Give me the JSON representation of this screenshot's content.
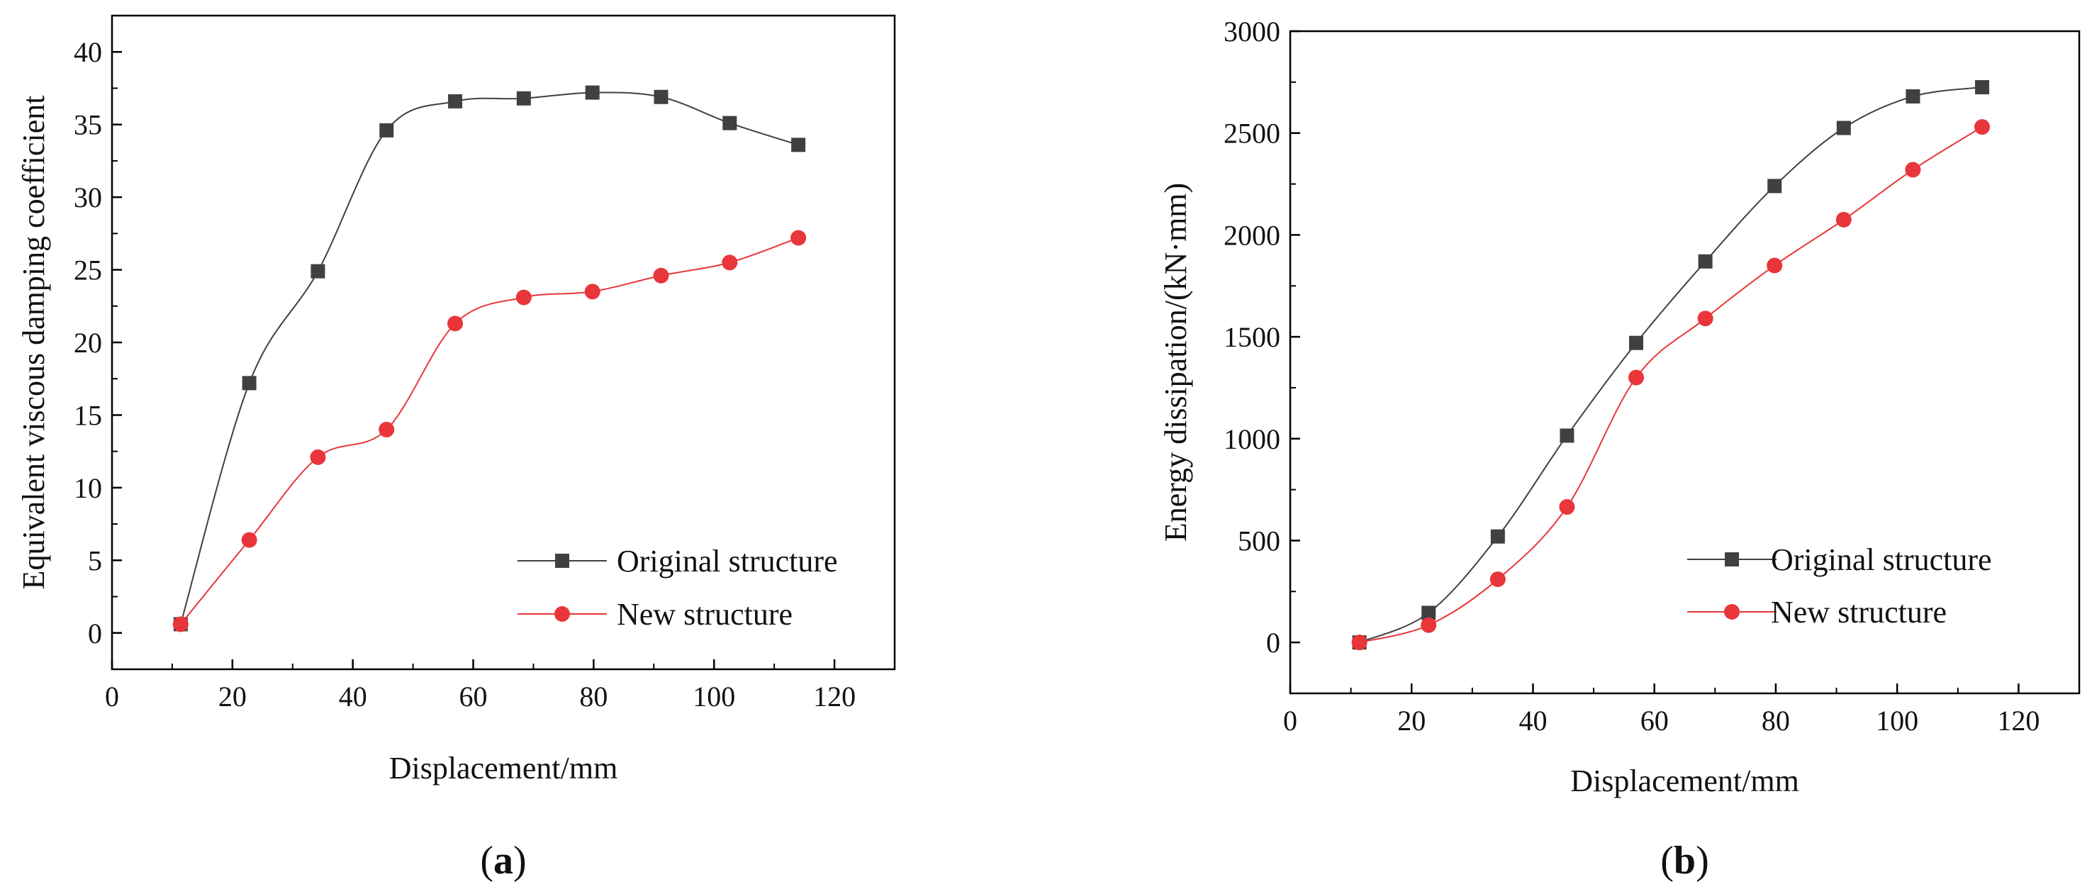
{
  "chart_data": [
    {
      "id": "a",
      "type": "line",
      "caption_letter": "a",
      "title": "",
      "xlabel": "Displacement/mm",
      "ylabel": "Equivalent viscous damping coefficient",
      "xlim": [
        0,
        130
      ],
      "ylim": [
        -2.5,
        42.5
      ],
      "xticks": [
        0,
        20,
        40,
        60,
        80,
        100,
        120
      ],
      "yticks": [
        0,
        5,
        10,
        15,
        20,
        25,
        30,
        35,
        40
      ],
      "grid": false,
      "legend_position": "lower-right",
      "series": [
        {
          "name": "Original  structure",
          "marker": "square",
          "color": "#404040",
          "x": [
            11.4,
            22.8,
            34.2,
            45.6,
            57.0,
            68.4,
            79.8,
            91.2,
            102.6,
            114.0
          ],
          "y": [
            0.6,
            17.2,
            24.9,
            34.6,
            36.6,
            36.8,
            37.2,
            36.9,
            35.1,
            33.6
          ]
        },
        {
          "name": "New structure",
          "marker": "circle",
          "color": "#e8363b",
          "x": [
            11.4,
            22.8,
            34.2,
            45.6,
            57.0,
            68.4,
            79.8,
            91.2,
            102.6,
            114.0
          ],
          "y": [
            0.6,
            6.4,
            12.1,
            14.0,
            21.3,
            23.1,
            23.5,
            24.6,
            25.5,
            27.2
          ]
        }
      ]
    },
    {
      "id": "b",
      "type": "line",
      "caption_letter": "b",
      "title": "",
      "xlabel": "Displacement/mm",
      "ylabel": "Energy dissipation/(kN·mm)",
      "xlim": [
        0,
        130
      ],
      "ylim": [
        -250,
        3000
      ],
      "xticks": [
        0,
        20,
        40,
        60,
        80,
        100,
        120
      ],
      "yticks": [
        0,
        500,
        1000,
        1500,
        2000,
        2500,
        3000
      ],
      "grid": false,
      "legend_position": "lower-right",
      "series": [
        {
          "name": "Original  structure",
          "marker": "square",
          "color": "#404040",
          "x": [
            11.4,
            22.8,
            34.2,
            45.6,
            57.0,
            68.4,
            79.8,
            91.2,
            102.6,
            114.0
          ],
          "y": [
            0,
            145,
            520,
            1015,
            1470,
            1870,
            2240,
            2525,
            2680,
            2725
          ]
        },
        {
          "name": "New structure",
          "marker": "circle",
          "color": "#e8363b",
          "x": [
            11.4,
            22.8,
            34.2,
            45.6,
            57.0,
            68.4,
            79.8,
            91.2,
            102.6,
            114.0
          ],
          "y": [
            0,
            85,
            310,
            665,
            1300,
            1590,
            1850,
            2075,
            2320,
            2530
          ]
        }
      ]
    }
  ]
}
